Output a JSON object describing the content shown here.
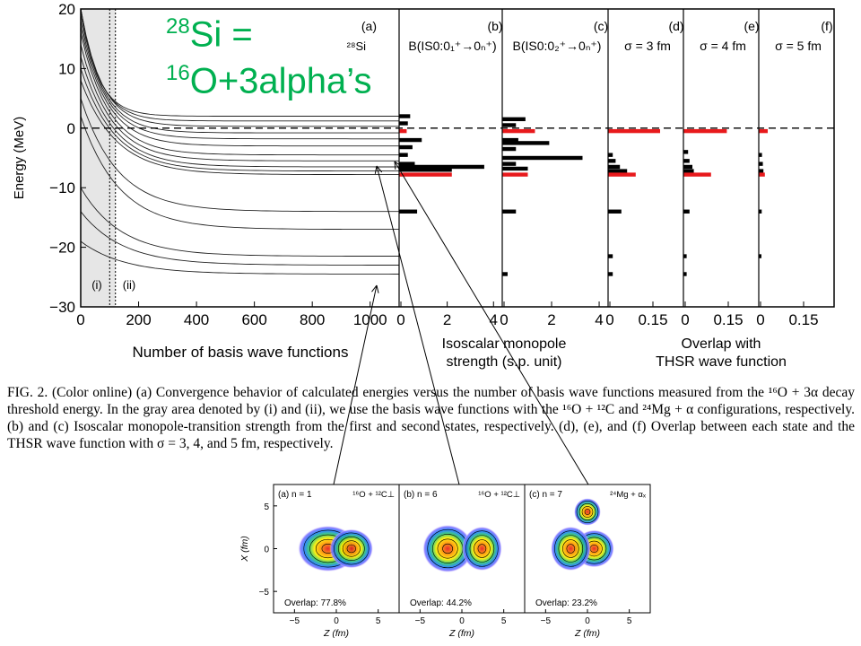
{
  "overlay_title": {
    "line1_sup": "28",
    "line1": "Si =",
    "line2_sup": "16",
    "line2": "O+3alpha’s"
  },
  "caption": {
    "fig": "FIG. 2.",
    "text": "(Color online) (a) Convergence behavior of calculated energies versus the number of basis wave functions measured from the ¹⁶O + 3α decay threshold energy. In the gray area denoted by (i) and (ii), we use the basis wave functions with the ¹⁶O + ¹²C and ²⁴Mg + α configurations, respectively. (b) and (c) Isoscalar monopole-transition strength from the first and second states, respectively. (d), (e), and (f) Overlap between each state and the THSR wave function with σ = 3, 4, and 5 fm, respectively."
  },
  "chart_data": [
    {
      "type": "line",
      "panel": "(a)",
      "label": "²⁸Si",
      "xlabel": "Number of basis wave functions",
      "ylabel": "Energy (MeV)",
      "xlim": [
        0,
        1100
      ],
      "ylim": [
        -30,
        20
      ],
      "xticks": [
        "0",
        "200",
        "400",
        "600",
        "800",
        "1000"
      ],
      "yticks": [
        "20",
        "10",
        "0",
        "−10",
        "−20",
        "−30"
      ],
      "region_labels": [
        "(i)",
        "(ii)"
      ],
      "region_bounds": [
        100,
        120
      ],
      "levels_final": [
        2.0,
        1.2,
        0.3,
        -0.8,
        -1.8,
        -3.0,
        -4.5,
        -5.5,
        -6.5,
        -7.2,
        -7.8,
        -14.0,
        -17.0,
        -21.5,
        -23.0,
        -24.5
      ],
      "levels_start": [
        20,
        20,
        20,
        19,
        18,
        17,
        16,
        14,
        12,
        10,
        8,
        5,
        2,
        -10,
        -14,
        -19
      ]
    },
    {
      "type": "bar",
      "panel": "(b)",
      "title": "B(IS0:0₁⁺→0ₙ⁺)",
      "xticks": [
        "0",
        "2",
        "4"
      ],
      "xlim": [
        0,
        4.3
      ],
      "ylim": [
        -30,
        20
      ],
      "bars": [
        {
          "e": 2.0,
          "v": 0.4,
          "c": "black"
        },
        {
          "e": 0.8,
          "v": 0.3,
          "c": "black"
        },
        {
          "e": -0.5,
          "v": 0.25,
          "c": "red"
        },
        {
          "e": -2.0,
          "v": 0.9,
          "c": "black"
        },
        {
          "e": -3.2,
          "v": 0.5,
          "c": "black"
        },
        {
          "e": -4.5,
          "v": 0.3,
          "c": "black"
        },
        {
          "e": -6.0,
          "v": 0.6,
          "c": "black"
        },
        {
          "e": -6.5,
          "v": 3.6,
          "c": "black"
        },
        {
          "e": -7.0,
          "v": 2.2,
          "c": "black"
        },
        {
          "e": -7.8,
          "v": 2.2,
          "c": "red"
        },
        {
          "e": -14.0,
          "v": 0.7,
          "c": "black"
        }
      ]
    },
    {
      "type": "bar",
      "panel": "(c)",
      "title": "B(IS0:0₂⁺→0ₙ⁺)",
      "xticks": [
        "0",
        "2",
        "4"
      ],
      "xlim": [
        0,
        4.3
      ],
      "ylim": [
        -30,
        20
      ],
      "bars": [
        {
          "e": 1.5,
          "v": 0.9,
          "c": "black"
        },
        {
          "e": 0.5,
          "v": 0.5,
          "c": "black"
        },
        {
          "e": -0.5,
          "v": 1.3,
          "c": "red"
        },
        {
          "e": -2.0,
          "v": 0.6,
          "c": "black"
        },
        {
          "e": -2.5,
          "v": 1.9,
          "c": "black"
        },
        {
          "e": -3.5,
          "v": 0.5,
          "c": "black"
        },
        {
          "e": -5.0,
          "v": 3.3,
          "c": "black"
        },
        {
          "e": -6.0,
          "v": 0.5,
          "c": "black"
        },
        {
          "e": -6.8,
          "v": 1.0,
          "c": "black"
        },
        {
          "e": -7.8,
          "v": 1.0,
          "c": "red"
        },
        {
          "e": -14.0,
          "v": 0.5,
          "c": "black"
        },
        {
          "e": -24.5,
          "v": 0.15,
          "c": "black"
        }
      ]
    },
    {
      "type": "bar",
      "panel": "(d)",
      "title": "σ = 3 fm",
      "xticks": [
        "0",
        "0.15"
      ],
      "xlim": [
        0,
        0.25
      ],
      "ylim": [
        -30,
        20
      ],
      "bars": [
        {
          "e": -0.5,
          "v": 0.175,
          "c": "red"
        },
        {
          "e": -4.5,
          "v": 0.01,
          "c": "black"
        },
        {
          "e": -5.5,
          "v": 0.02,
          "c": "black"
        },
        {
          "e": -6.5,
          "v": 0.035,
          "c": "black"
        },
        {
          "e": -7.2,
          "v": 0.06,
          "c": "black"
        },
        {
          "e": -7.8,
          "v": 0.09,
          "c": "red"
        },
        {
          "e": -14.0,
          "v": 0.04,
          "c": "black"
        },
        {
          "e": -21.5,
          "v": 0.01,
          "c": "black"
        },
        {
          "e": -24.5,
          "v": 0.01,
          "c": "black"
        }
      ]
    },
    {
      "type": "bar",
      "panel": "(e)",
      "title": "σ = 4 fm",
      "xticks": [
        "0",
        "0.15"
      ],
      "xlim": [
        0,
        0.25
      ],
      "ylim": [
        -30,
        20
      ],
      "bars": [
        {
          "e": -0.5,
          "v": 0.145,
          "c": "red"
        },
        {
          "e": -4.0,
          "v": 0.01,
          "c": "black"
        },
        {
          "e": -5.5,
          "v": 0.015,
          "c": "black"
        },
        {
          "e": -6.5,
          "v": 0.025,
          "c": "black"
        },
        {
          "e": -7.2,
          "v": 0.03,
          "c": "black"
        },
        {
          "e": -7.8,
          "v": 0.09,
          "c": "red"
        },
        {
          "e": -14.0,
          "v": 0.015,
          "c": "black"
        },
        {
          "e": -21.5,
          "v": 0.005,
          "c": "black"
        },
        {
          "e": -24.5,
          "v": 0.005,
          "c": "black"
        }
      ]
    },
    {
      "type": "bar",
      "panel": "(f)",
      "title": "σ = 5 fm",
      "xticks": [
        "0",
        "0.15"
      ],
      "xlim": [
        0,
        0.25
      ],
      "ylim": [
        -30,
        20
      ],
      "bars": [
        {
          "e": -0.5,
          "v": 0.025,
          "c": "red"
        },
        {
          "e": -4.5,
          "v": 0.005,
          "c": "black"
        },
        {
          "e": -6.0,
          "v": 0.008,
          "c": "black"
        },
        {
          "e": -7.2,
          "v": 0.01,
          "c": "black"
        },
        {
          "e": -7.8,
          "v": 0.015,
          "c": "red"
        },
        {
          "e": -14.0,
          "v": 0.004,
          "c": "black"
        },
        {
          "e": -21.5,
          "v": 0.003,
          "c": "black"
        }
      ]
    },
    {
      "type": "heatmap",
      "panels": [
        {
          "label": "(a) n = 1",
          "config": "¹⁶O + ¹²C⊥",
          "overlap": "Overlap: 77.8%"
        },
        {
          "label": "(b) n = 6",
          "config": "¹⁶O + ¹²C⊥",
          "overlap": "Overlap: 44.2%"
        },
        {
          "label": "(c) n = 7",
          "config": "²⁴Mg + αₓ",
          "overlap": "Overlap: 23.2%"
        }
      ],
      "xlabel": "Z (fm)",
      "ylabel": "X (fm)",
      "xticks": [
        "−5",
        "0",
        "5"
      ],
      "yticks": [
        "5",
        "0",
        "−5"
      ]
    }
  ],
  "label_isoscalar": [
    "Isoscalar monopole",
    "strength (s.p. unit)"
  ],
  "label_overlap": [
    "Overlap with",
    "THSR wave function"
  ],
  "colors": {
    "red": "#e8191c",
    "black": "#000000",
    "green": "#00b050",
    "gray": "#e6e6e6"
  }
}
